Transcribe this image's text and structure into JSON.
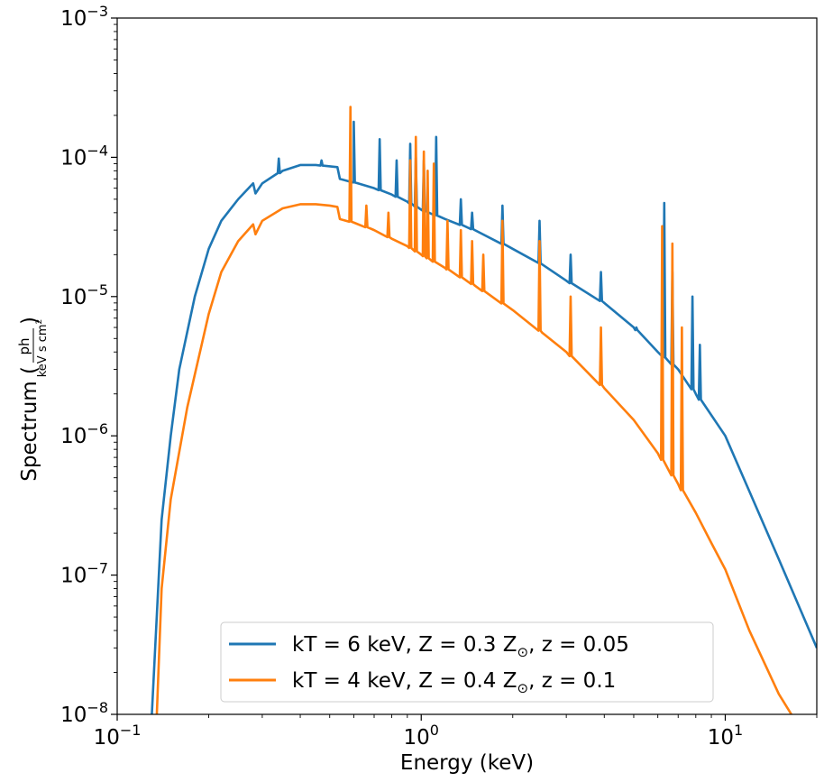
{
  "chart_data": {
    "type": "line",
    "xlabel": "Energy (keV)",
    "ylabel": "Spectrum (ph / keV s cm²)",
    "ylabel_parts": {
      "main": "Spectrum (",
      "num": "ph",
      "den": "keV s cm",
      "den_sup": "2",
      "close": ")"
    },
    "x_scale": "log",
    "y_scale": "log",
    "xlim": [
      0.1,
      20
    ],
    "ylim": [
      1e-08,
      0.001
    ],
    "grid": false,
    "legend_position": "bottom-center",
    "x_ticks": [
      {
        "value": 0.1,
        "base": "10",
        "exp": "−1"
      },
      {
        "value": 1,
        "base": "10",
        "exp": "0"
      },
      {
        "value": 10,
        "base": "10",
        "exp": "1"
      }
    ],
    "y_ticks": [
      {
        "value": 1e-08,
        "base": "10",
        "exp": "−8"
      },
      {
        "value": 1e-07,
        "base": "10",
        "exp": "−7"
      },
      {
        "value": 1e-06,
        "base": "10",
        "exp": "−6"
      },
      {
        "value": 1e-05,
        "base": "10",
        "exp": "−5"
      },
      {
        "value": 0.0001,
        "base": "10",
        "exp": "−4"
      },
      {
        "value": 0.001,
        "base": "10",
        "exp": "−3"
      }
    ],
    "series": [
      {
        "name": "kT = 6 keV, Z = 0.3 Z⊙, z = 0.05",
        "legend_parts": {
          "pre": "kT  =  6 keV,  Z  =  0.3 Z",
          "sub": "⊙",
          "post": ",  z  =  0.05"
        },
        "color": "#1f77b4",
        "points": [
          [
            0.13,
            1e-08
          ],
          [
            0.14,
            2.5e-07
          ],
          [
            0.15,
            1e-06
          ],
          [
            0.16,
            3e-06
          ],
          [
            0.18,
            1e-05
          ],
          [
            0.2,
            2.2e-05
          ],
          [
            0.22,
            3.5e-05
          ],
          [
            0.25,
            5e-05
          ],
          [
            0.28,
            6.5e-05
          ],
          [
            0.285,
            5.5e-05
          ],
          [
            0.3,
            6.5e-05
          ],
          [
            0.35,
            8e-05
          ],
          [
            0.4,
            8.8e-05
          ],
          [
            0.45,
            8.8e-05
          ],
          [
            0.53,
            8.5e-05
          ],
          [
            0.54,
            7e-05
          ],
          [
            0.6,
            6.6e-05
          ],
          [
            0.7,
            6e-05
          ],
          [
            0.8,
            5.4e-05
          ],
          [
            0.9,
            4.8e-05
          ],
          [
            1.0,
            4.2e-05
          ],
          [
            1.2,
            3.6e-05
          ],
          [
            1.5,
            3e-05
          ],
          [
            2.0,
            2.2e-05
          ],
          [
            2.5,
            1.7e-05
          ],
          [
            3.0,
            1.3e-05
          ],
          [
            4.0,
            9e-06
          ],
          [
            5.0,
            6e-06
          ],
          [
            6.0,
            4e-06
          ],
          [
            7.0,
            3e-06
          ],
          [
            8.0,
            2e-06
          ],
          [
            10.0,
            1e-06
          ],
          [
            12.0,
            4e-07
          ],
          [
            15.0,
            1.3e-07
          ],
          [
            20.0,
            3e-08
          ]
        ],
        "lines": [
          [
            0.34,
            9.8e-05
          ],
          [
            0.47,
            9.5e-05
          ],
          [
            0.6,
            0.00018
          ],
          [
            0.73,
            0.000135
          ],
          [
            0.83,
            9.5e-05
          ],
          [
            0.92,
            0.000125
          ],
          [
            0.96,
            0.0001
          ],
          [
            1.02,
            9.5e-05
          ],
          [
            1.12,
            0.00014
          ],
          [
            1.35,
            5e-05
          ],
          [
            1.47,
            4e-05
          ],
          [
            1.85,
            4.5e-05
          ],
          [
            2.45,
            3.5e-05
          ],
          [
            3.1,
            2e-05
          ],
          [
            3.9,
            1.5e-05
          ],
          [
            5.1,
            6e-06
          ],
          [
            6.3,
            4.7e-05
          ],
          [
            6.7,
            1.5e-05
          ],
          [
            7.8,
            1e-05
          ],
          [
            8.25,
            4.5e-06
          ]
        ]
      },
      {
        "name": "kT = 4 keV, Z = 0.4 Z⊙, z = 0.1",
        "legend_parts": {
          "pre": "kT  =  4 keV,  Z  =  0.4 Z",
          "sub": "⊙",
          "post": ",  z  =  0.1"
        },
        "color": "#ff7f0e",
        "points": [
          [
            0.135,
            1e-08
          ],
          [
            0.14,
            8e-08
          ],
          [
            0.15,
            3.5e-07
          ],
          [
            0.17,
            1.6e-06
          ],
          [
            0.2,
            7.5e-06
          ],
          [
            0.22,
            1.5e-05
          ],
          [
            0.25,
            2.5e-05
          ],
          [
            0.28,
            3.3e-05
          ],
          [
            0.285,
            2.8e-05
          ],
          [
            0.3,
            3.5e-05
          ],
          [
            0.35,
            4.3e-05
          ],
          [
            0.4,
            4.6e-05
          ],
          [
            0.45,
            4.6e-05
          ],
          [
            0.5,
            4.5e-05
          ],
          [
            0.53,
            4.4e-05
          ],
          [
            0.54,
            3.6e-05
          ],
          [
            0.6,
            3.4e-05
          ],
          [
            0.7,
            3e-05
          ],
          [
            0.8,
            2.6e-05
          ],
          [
            0.9,
            2.3e-05
          ],
          [
            1.0,
            2e-05
          ],
          [
            1.2,
            1.6e-05
          ],
          [
            1.5,
            1.2e-05
          ],
          [
            2.0,
            8e-06
          ],
          [
            2.5,
            5.5e-06
          ],
          [
            3.0,
            4e-06
          ],
          [
            4.0,
            2.2e-06
          ],
          [
            5.0,
            1.3e-06
          ],
          [
            6.0,
            7.5e-07
          ],
          [
            7.0,
            4.5e-07
          ],
          [
            8.0,
            2.8e-07
          ],
          [
            9.0,
            1.7e-07
          ],
          [
            10.0,
            1.1e-07
          ],
          [
            12.0,
            4e-08
          ],
          [
            15.0,
            1.4e-08
          ],
          [
            16.5,
            1e-08
          ]
        ],
        "lines": [
          [
            0.585,
            0.00023
          ],
          [
            0.66,
            4.5e-05
          ],
          [
            0.78,
            4e-05
          ],
          [
            0.92,
            9.5e-05
          ],
          [
            0.96,
            0.00014
          ],
          [
            1.02,
            0.00011
          ],
          [
            1.05,
            8e-05
          ],
          [
            1.1,
            9e-05
          ],
          [
            1.22,
            3.5e-05
          ],
          [
            1.35,
            3e-05
          ],
          [
            1.47,
            2.5e-05
          ],
          [
            1.6,
            2e-05
          ],
          [
            1.85,
            3.5e-05
          ],
          [
            2.45,
            2.5e-05
          ],
          [
            3.1,
            1e-05
          ],
          [
            3.9,
            6e-06
          ],
          [
            6.2,
            3.2e-05
          ],
          [
            6.7,
            2.4e-05
          ],
          [
            7.2,
            6e-06
          ]
        ]
      }
    ]
  }
}
